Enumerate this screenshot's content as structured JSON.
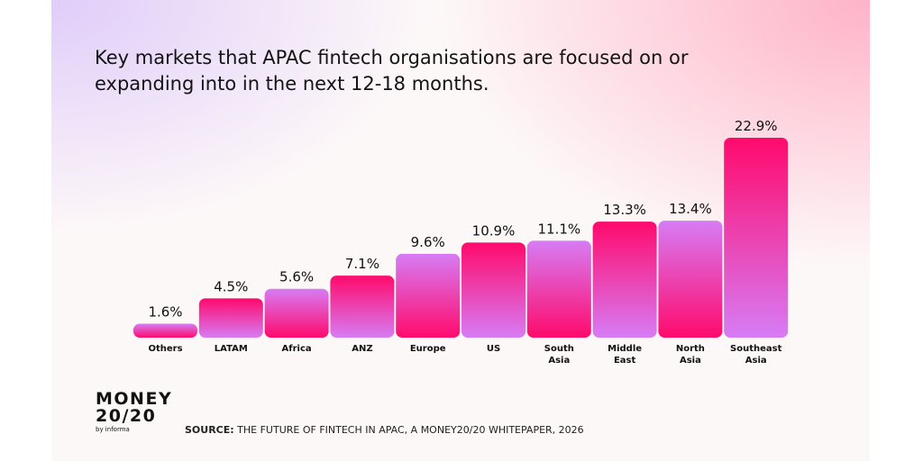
{
  "chart_data": {
    "type": "bar",
    "title": "Key markets that APAC fintech organisations are focused on or expanding into in the next 12-18 months.",
    "categories": [
      "Others",
      "LATAM",
      "Africa",
      "ANZ",
      "Europe",
      "US",
      "South Asia",
      "Middle East",
      "North Asia",
      "Southeast Asia"
    ],
    "category_lines": [
      [
        "Others"
      ],
      [
        "LATAM"
      ],
      [
        "Africa"
      ],
      [
        "ANZ"
      ],
      [
        "Europe"
      ],
      [
        "US"
      ],
      [
        "South",
        "Asia"
      ],
      [
        "Middle",
        "East"
      ],
      [
        "North",
        "Asia"
      ],
      [
        "Southeast",
        "Asia"
      ]
    ],
    "values": [
      1.6,
      4.5,
      5.6,
      7.1,
      9.6,
      10.9,
      11.1,
      13.3,
      13.4,
      22.9
    ],
    "value_labels": [
      "1.6%",
      "4.5%",
      "5.6%",
      "7.1%",
      "9.6%",
      "10.9%",
      "11.1%",
      "13.3%",
      "13.4%",
      "22.9%"
    ],
    "unit": "%",
    "ylim": [
      0,
      23
    ],
    "grid": false,
    "xlabel": "",
    "ylabel": "",
    "colors": {
      "pink": "#ff0a6c",
      "purple": "#d77cf5"
    }
  },
  "footer": {
    "logo_line1": "MONEY",
    "logo_line2": "20/20",
    "logo_line3": "by informa",
    "source_label": "SOURCE:",
    "source_text": " THE FUTURE OF FINTECH IN APAC, A MONEY20/20 WHITEPAPER, 2026"
  }
}
